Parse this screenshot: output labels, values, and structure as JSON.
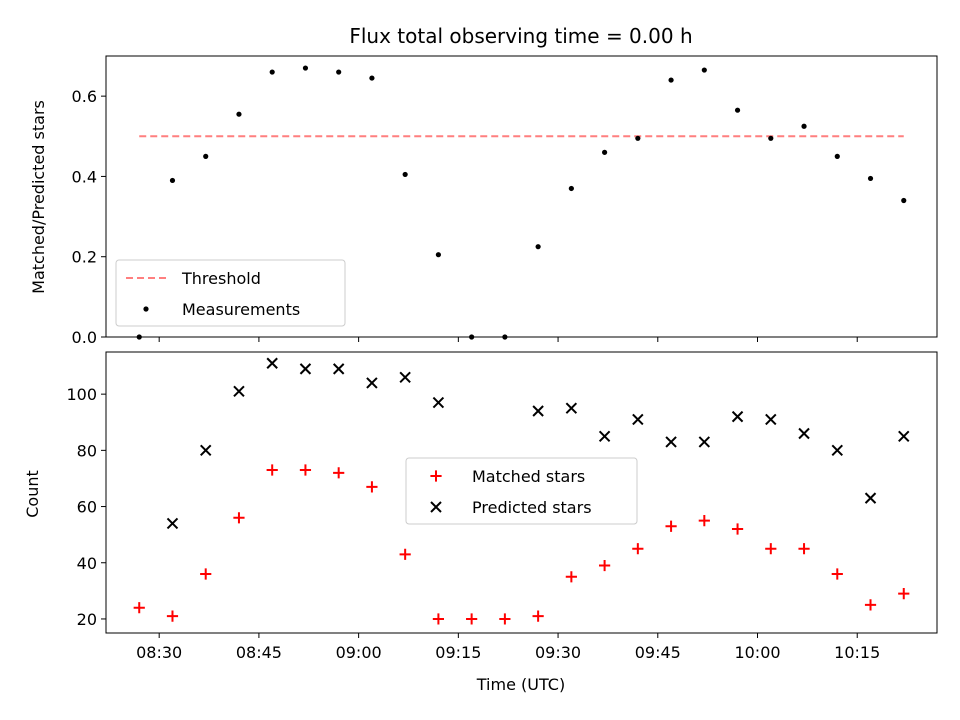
{
  "chart_data": [
    {
      "type": "scatter",
      "title": "Flux total observing time = 0.00 h",
      "xlabel": "",
      "ylabel": "Matched/Predicted stars",
      "ylim": [
        0,
        0.7
      ],
      "yticks": [
        "0.0",
        "0.2",
        "0.4",
        "0.6"
      ],
      "ytick_values": [
        0,
        0.2,
        0.4,
        0.6
      ],
      "threshold": {
        "name": "Threshold",
        "value": 0.5,
        "x_start": "08:27",
        "x_end": "10:22",
        "color": "#ff7f7f"
      },
      "series": [
        {
          "name": "Measurements",
          "color": "#000000",
          "marker": "dot",
          "x": [
            "08:27",
            "08:32",
            "08:37",
            "08:42",
            "08:47",
            "08:52",
            "08:57",
            "09:02",
            "09:07",
            "09:12",
            "09:17",
            "09:22",
            "09:27",
            "09:32",
            "09:37",
            "09:42",
            "09:47",
            "09:52",
            "09:57",
            "10:02",
            "10:07",
            "10:12",
            "10:17",
            "10:22"
          ],
          "y": [
            0.0,
            0.39,
            0.45,
            0.555,
            0.66,
            0.67,
            0.66,
            0.645,
            0.405,
            0.205,
            0.0,
            0.0,
            0.225,
            0.37,
            0.46,
            0.495,
            0.64,
            0.665,
            0.565,
            0.495,
            0.525,
            0.45,
            0.395,
            0.34
          ]
        }
      ],
      "legend_position": "lower-left",
      "grid": false
    },
    {
      "type": "scatter",
      "title": "",
      "xlabel": "Time (UTC)",
      "ylabel": "Count",
      "ylim": [
        15,
        115
      ],
      "yticks": [
        "20",
        "40",
        "60",
        "80",
        "100"
      ],
      "ytick_values": [
        20,
        40,
        60,
        80,
        100
      ],
      "xticks": [
        "08:30",
        "08:45",
        "09:00",
        "09:15",
        "09:30",
        "09:45",
        "10:00",
        "10:15"
      ],
      "series": [
        {
          "name": "Matched stars",
          "color": "#ff0000",
          "marker": "plus",
          "x": [
            "08:27",
            "08:32",
            "08:37",
            "08:42",
            "08:47",
            "08:52",
            "08:57",
            "09:02",
            "09:07",
            "09:12",
            "09:17",
            "09:22",
            "09:27",
            "09:32",
            "09:37",
            "09:42",
            "09:47",
            "09:52",
            "09:57",
            "10:02",
            "10:07",
            "10:12",
            "10:17",
            "10:22"
          ],
          "y": [
            24,
            21,
            36,
            56,
            73,
            73,
            72,
            67,
            43,
            20,
            20,
            20,
            21,
            35,
            39,
            45,
            53,
            55,
            52,
            45,
            45,
            36,
            25,
            29
          ]
        },
        {
          "name": "Predicted stars",
          "color": "#000000",
          "marker": "x",
          "x": [
            "08:32",
            "08:37",
            "08:42",
            "08:47",
            "08:52",
            "08:57",
            "09:02",
            "09:07",
            "09:12",
            "09:27",
            "09:32",
            "09:37",
            "09:42",
            "09:47",
            "09:52",
            "09:57",
            "10:02",
            "10:07",
            "10:12",
            "10:17",
            "10:22"
          ],
          "y": [
            54,
            80,
            101,
            111,
            109,
            109,
            104,
            106,
            97,
            94,
            95,
            85,
            91,
            83,
            83,
            92,
            91,
            86,
            80,
            63,
            85
          ]
        }
      ],
      "legend_position": "center",
      "grid": false
    }
  ]
}
